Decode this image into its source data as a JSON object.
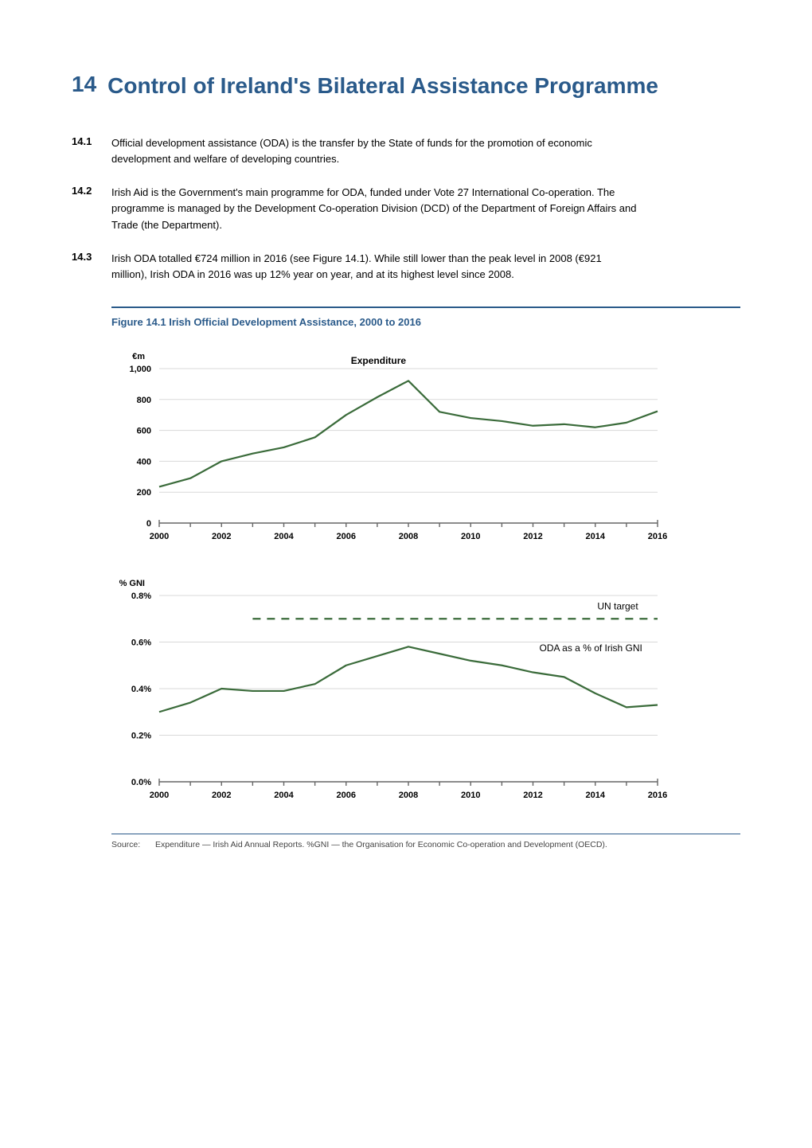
{
  "title": {
    "number": "14",
    "text": "Control of Ireland's Bilateral Assistance Programme"
  },
  "paragraphs": [
    {
      "num": "14.1",
      "text": "Official development assistance (ODA) is the transfer by the State of funds for the promotion of economic development and welfare of developing countries."
    },
    {
      "num": "14.2",
      "text": "Irish Aid is the Government's main programme for ODA, funded under Vote 27 International Co-operation.  The programme is managed by the Development Co-operation Division (DCD) of the Department of Foreign Affairs and Trade (the Department)."
    },
    {
      "num": "14.3",
      "text": "Irish ODA totalled €724 million in 2016 (see Figure 14.1).  While still lower than the peak level in 2008 (€921 million), Irish ODA in 2016 was up 12% year on year, and at its highest level since 2008."
    }
  ],
  "figure": {
    "title": "Figure 14.1  Irish Official Development Assistance, 2000 to 2016",
    "chart1": {
      "type": "line",
      "y_label": "€m",
      "legend": "Expenditure",
      "x_ticks": [
        "2000",
        "2002",
        "2004",
        "2006",
        "2008",
        "2010",
        "2012",
        "2014",
        "2016"
      ],
      "y_ticks": [
        "0",
        "200",
        "400",
        "600",
        "800",
        "1,000"
      ],
      "ylim": [
        0,
        1000
      ],
      "xlim": [
        2000,
        2016
      ],
      "line_color": "#3a6b3a",
      "line_width": 2.2,
      "grid_color": "#d9d9d9",
      "axis_color": "#666666",
      "text_color": "#000000",
      "font_size_axis": 11,
      "font_size_label": 11,
      "points": [
        {
          "x": 2000,
          "y": 235
        },
        {
          "x": 2001,
          "y": 290
        },
        {
          "x": 2002,
          "y": 400
        },
        {
          "x": 2003,
          "y": 450
        },
        {
          "x": 2004,
          "y": 490
        },
        {
          "x": 2005,
          "y": 555
        },
        {
          "x": 2006,
          "y": 700
        },
        {
          "x": 2007,
          "y": 815
        },
        {
          "x": 2008,
          "y": 921
        },
        {
          "x": 2009,
          "y": 720
        },
        {
          "x": 2010,
          "y": 680
        },
        {
          "x": 2011,
          "y": 660
        },
        {
          "x": 2012,
          "y": 630
        },
        {
          "x": 2013,
          "y": 640
        },
        {
          "x": 2014,
          "y": 620
        },
        {
          "x": 2015,
          "y": 650
        },
        {
          "x": 2016,
          "y": 724
        }
      ]
    },
    "chart2": {
      "type": "line",
      "y_label": "% GNI",
      "x_ticks": [
        "2000",
        "2002",
        "2004",
        "2006",
        "2008",
        "2010",
        "2012",
        "2014",
        "2016"
      ],
      "y_ticks": [
        "0.0%",
        "0.2%",
        "0.4%",
        "0.6%",
        "0.8%"
      ],
      "ylim": [
        0.0,
        0.8
      ],
      "xlim": [
        2000,
        2016
      ],
      "line_color": "#3a6b3a",
      "line_width": 2.2,
      "grid_color": "#d9d9d9",
      "axis_color": "#666666",
      "text_color": "#000000",
      "font_size_axis": 11,
      "font_size_label": 11,
      "un_target": {
        "label": "UN target",
        "value": 0.7,
        "color": "#3a6b3a",
        "dash": "10,8",
        "width": 2.2,
        "x_start": 2003
      },
      "series_label": "ODA as a % of Irish GNI",
      "points": [
        {
          "x": 2000,
          "y": 0.3
        },
        {
          "x": 2001,
          "y": 0.34
        },
        {
          "x": 2002,
          "y": 0.4
        },
        {
          "x": 2003,
          "y": 0.39
        },
        {
          "x": 2004,
          "y": 0.39
        },
        {
          "x": 2005,
          "y": 0.42
        },
        {
          "x": 2006,
          "y": 0.5
        },
        {
          "x": 2007,
          "y": 0.54
        },
        {
          "x": 2008,
          "y": 0.58
        },
        {
          "x": 2009,
          "y": 0.55
        },
        {
          "x": 2010,
          "y": 0.52
        },
        {
          "x": 2011,
          "y": 0.5
        },
        {
          "x": 2012,
          "y": 0.47
        },
        {
          "x": 2013,
          "y": 0.45
        },
        {
          "x": 2014,
          "y": 0.38
        },
        {
          "x": 2015,
          "y": 0.32
        },
        {
          "x": 2016,
          "y": 0.33
        }
      ]
    },
    "source_label": "Source:",
    "source_text": "Expenditure — Irish Aid Annual Reports.  %GNI — the Organisation for Economic Co-operation and Development (OECD)."
  }
}
